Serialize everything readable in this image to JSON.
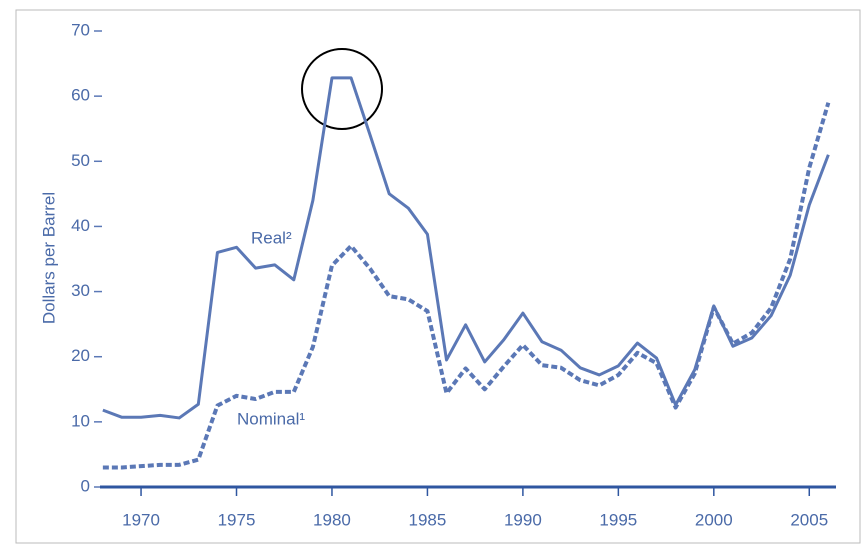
{
  "chart_data": {
    "type": "line",
    "y_label": "Dollars per Barrel",
    "x": [
      1968,
      1969,
      1970,
      1971,
      1972,
      1973,
      1974,
      1975,
      1976,
      1977,
      1978,
      1979,
      1980,
      1981,
      1982,
      1983,
      1984,
      1985,
      1986,
      1987,
      1988,
      1989,
      1990,
      1991,
      1992,
      1993,
      1994,
      1995,
      1996,
      1997,
      1998,
      1999,
      2000,
      2001,
      2002,
      2003,
      2004,
      2005,
      2006
    ],
    "series": [
      {
        "name": "Real²",
        "color": "#5b78b6",
        "dash": false,
        "values": [
          11.8,
          10.7,
          10.7,
          11,
          10.6,
          12.7,
          36,
          36.8,
          33.6,
          34.1,
          31.8,
          44,
          62.8,
          62.8,
          54,
          45,
          42.8,
          38.8,
          19.5,
          24.9,
          19.2,
          22.6,
          26.7,
          22.3,
          21,
          18.3,
          17.2,
          18.6,
          22.1,
          19.8,
          12.6,
          18,
          27.8,
          21.6,
          22.9,
          26.3,
          32.5,
          43.3,
          51
        ]
      },
      {
        "name": "Nominal¹",
        "color": "#5b78b6",
        "dash": true,
        "values": [
          3,
          3,
          3.2,
          3.4,
          3.4,
          4.2,
          12.5,
          14,
          13.5,
          14.6,
          14.6,
          21.5,
          34,
          37,
          33.5,
          29.3,
          28.8,
          27,
          14.4,
          18.2,
          15,
          18.5,
          21.8,
          18.7,
          18.3,
          16.4,
          15.6,
          17.2,
          20.6,
          19,
          12.2,
          17.4,
          27.6,
          22,
          23.7,
          27.5,
          35,
          49,
          59
        ]
      }
    ],
    "xlim": [
      1967.85,
      2006.4
    ],
    "xticks": [
      1970,
      1975,
      1980,
      1985,
      1990,
      1995,
      2000,
      2005
    ],
    "ylim": [
      0,
      70
    ],
    "yticks": [
      0,
      10,
      20,
      30,
      40,
      50,
      60,
      70
    ]
  }
}
